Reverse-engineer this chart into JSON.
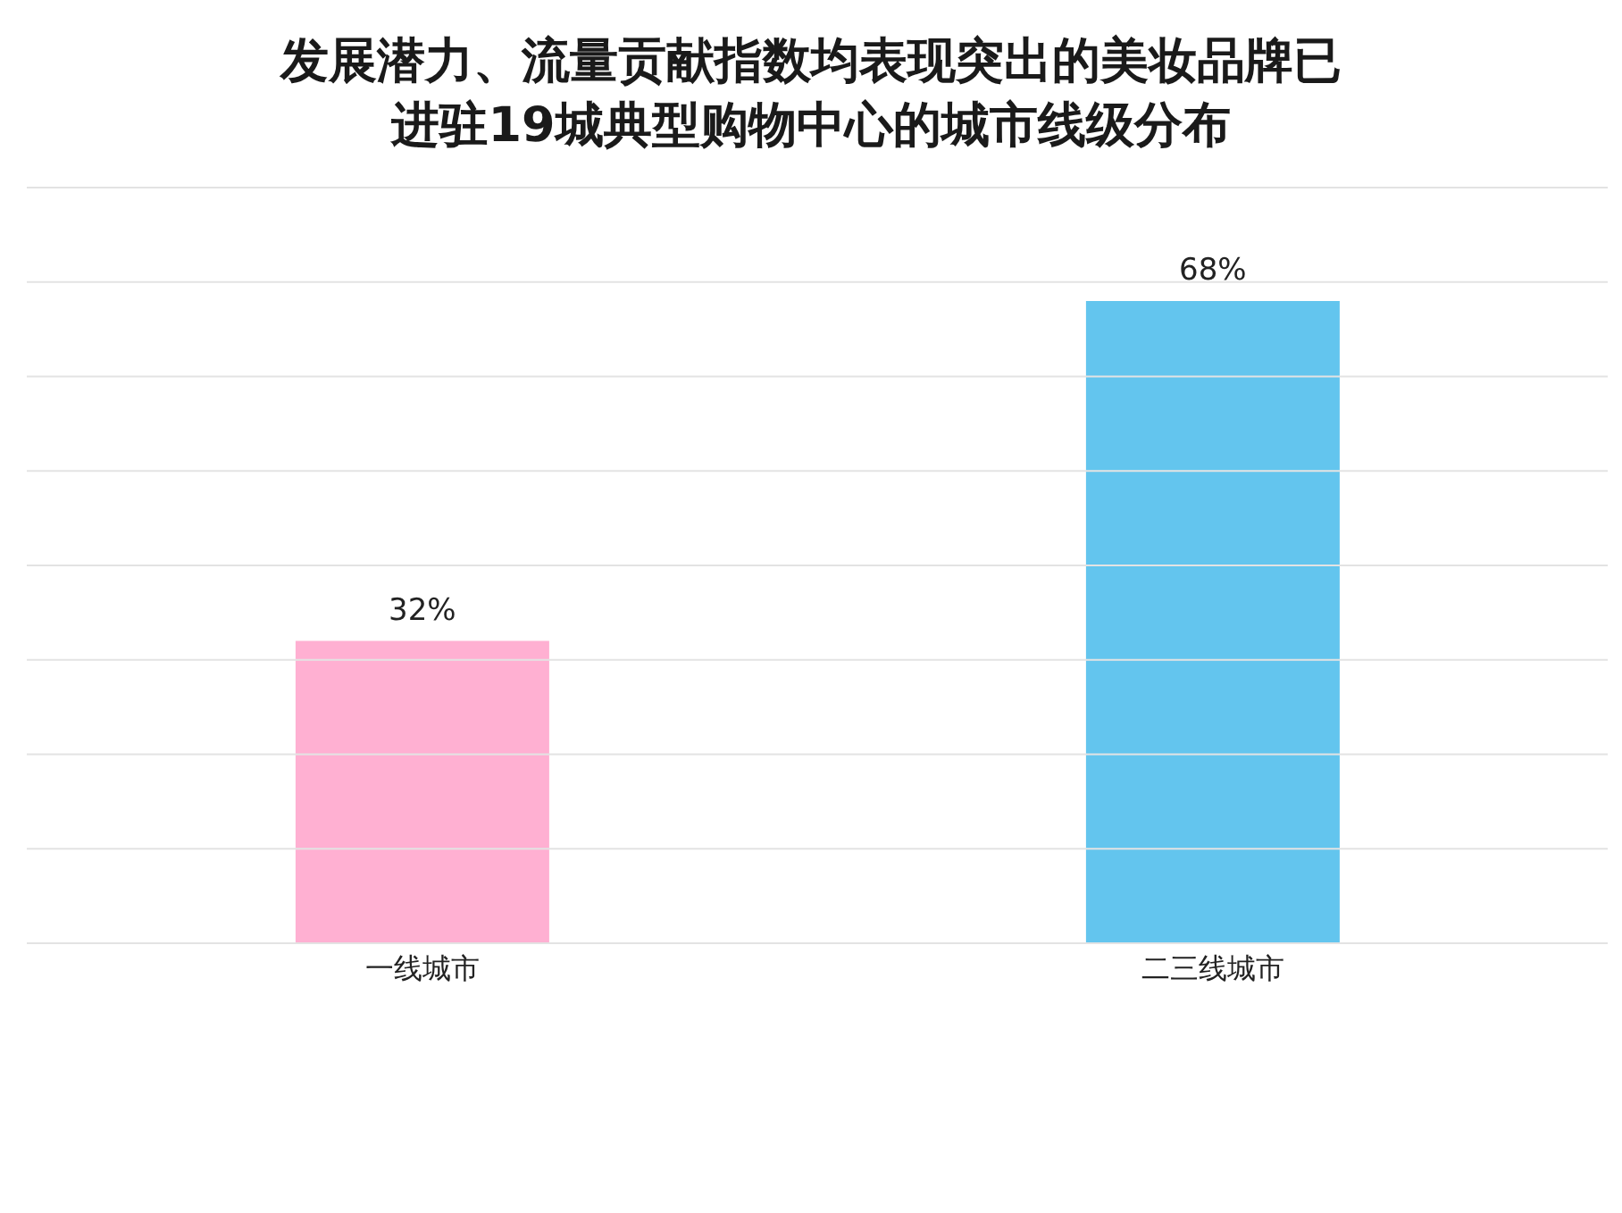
{
  "chart_data": {
    "type": "bar",
    "title": "发展潜力、流量贡献指数均表现突出的美妆品牌已进驻19城典型购物中心的城市线级分布",
    "categories": [
      "一线城市",
      "二三线城市"
    ],
    "values": [
      32,
      68
    ],
    "colors": [
      "#ffb0d2",
      "#63c5ee"
    ],
    "value_labels": [
      "32%",
      "68%"
    ],
    "ylim": [
      0,
      80
    ],
    "yticks": [
      {
        "value": 0,
        "label": null
      },
      {
        "value": 10,
        "label": null
      },
      {
        "value": 20,
        "label": null
      },
      {
        "value": 30,
        "label": null
      },
      {
        "value": 40,
        "label": null
      },
      {
        "value": 50,
        "label": null
      },
      {
        "value": 60,
        "label": null
      },
      {
        "value": 70,
        "label": null
      },
      {
        "value": 80,
        "label": null
      }
    ],
    "tick_labels": "x",
    "grid": "y"
  }
}
